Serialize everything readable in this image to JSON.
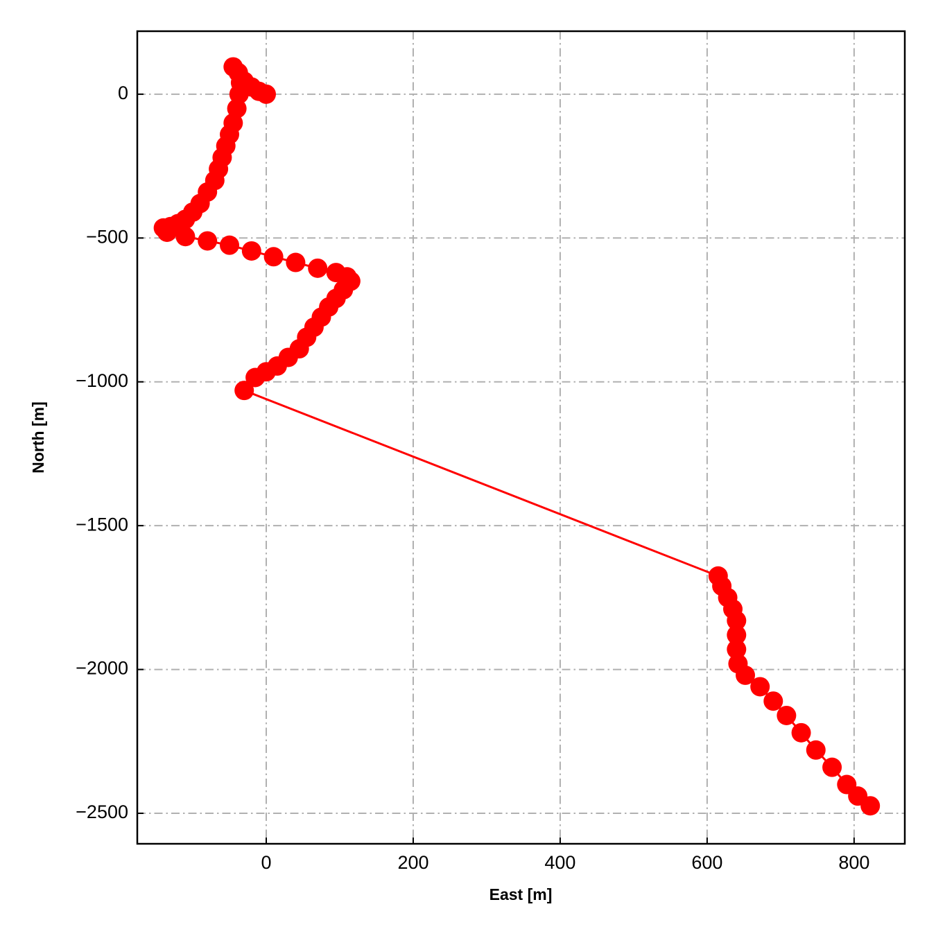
{
  "chart_data": {
    "type": "line",
    "xlabel": "East [m]",
    "ylabel": "North [m]",
    "color": "#ff0000",
    "grid": true,
    "xlim": [
      -175.5,
      869
    ],
    "ylim": [
      -2606,
      219
    ],
    "xticks": [
      0,
      200,
      400,
      600,
      800
    ],
    "yticks": [
      0,
      {
        "value": -500,
        "label": "−500"
      },
      {
        "value": -1000,
        "label": "−1000"
      },
      {
        "value": -1500,
        "label": "−1500"
      },
      {
        "value": -2000,
        "label": "−2000"
      },
      {
        "value": -2500,
        "label": "−2500"
      }
    ],
    "x": [
      0,
      -10,
      -20,
      -30,
      -45,
      -38,
      -35,
      -37,
      -40,
      -45,
      -50,
      -55,
      -60,
      -65,
      -70,
      -80,
      -90,
      -100,
      -110,
      -120,
      -130,
      -140,
      -135,
      -110,
      -80,
      -50,
      -20,
      10,
      40,
      70,
      95,
      110,
      115,
      105,
      95,
      85,
      75,
      65,
      55,
      45,
      30,
      15,
      0,
      -15,
      -30,
      615,
      620,
      628,
      635,
      640,
      640,
      640,
      642,
      652,
      672,
      690,
      708,
      728,
      748,
      770,
      790,
      805,
      822
    ],
    "values": [
      0,
      10,
      25,
      45,
      95,
      75,
      40,
      0,
      -50,
      -100,
      -140,
      -180,
      -220,
      -260,
      -300,
      -340,
      -380,
      -410,
      -435,
      -450,
      -460,
      -465,
      -480,
      -495,
      -510,
      -525,
      -545,
      -565,
      -585,
      -605,
      -620,
      -635,
      -650,
      -680,
      -710,
      -740,
      -775,
      -810,
      -845,
      -885,
      -915,
      -945,
      -965,
      -985,
      -1030,
      -1675,
      -1710,
      -1750,
      -1790,
      -1830,
      -1880,
      -1930,
      -1980,
      -2020,
      -2060,
      -2110,
      -2160,
      -2220,
      -2280,
      -2340,
      -2400,
      -2440,
      -2474
    ]
  }
}
